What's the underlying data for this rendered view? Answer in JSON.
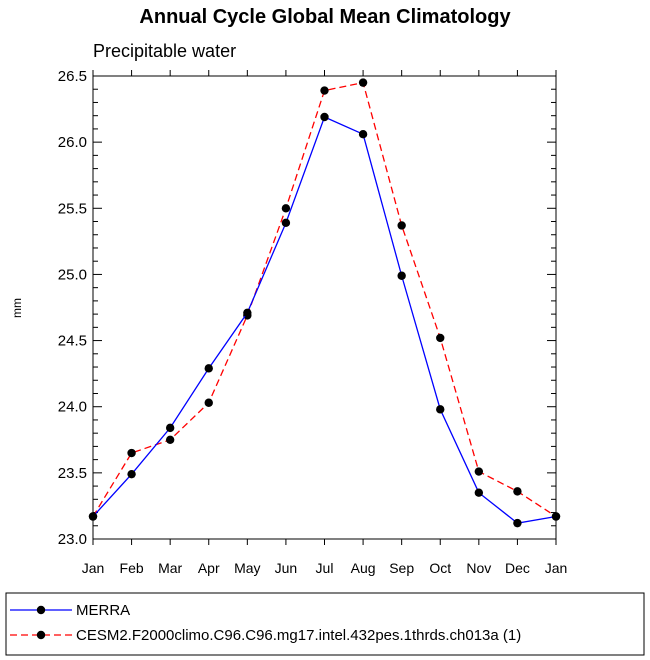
{
  "chart_data": {
    "type": "line",
    "title": "Annual Cycle Global Mean Climatology",
    "subtitle": "Precipitable water",
    "xlabel": "",
    "ylabel": "mm",
    "categories": [
      "Jan",
      "Feb",
      "Mar",
      "Apr",
      "May",
      "Jun",
      "Jul",
      "Aug",
      "Sep",
      "Oct",
      "Nov",
      "Dec",
      "Jan"
    ],
    "ylim": [
      23.0,
      26.5
    ],
    "yticks": [
      "23.0",
      "23.5",
      "24.0",
      "24.5",
      "25.0",
      "25.5",
      "26.0",
      "26.5"
    ],
    "grid": false,
    "legend_position": "bottom",
    "series": [
      {
        "name": "MERRA",
        "color": "#0000ff",
        "line_style": "solid",
        "marker": "filled-circle",
        "values": [
          23.17,
          23.49,
          23.84,
          24.29,
          24.71,
          25.39,
          26.19,
          26.06,
          24.99,
          23.98,
          23.35,
          23.12,
          23.17
        ]
      },
      {
        "name": "CESM2.F2000climo.C96.C96.mg17.intel.432pes.1thrds.ch013a (1)",
        "color": "#ff0000",
        "line_style": "dashed",
        "marker": "filled-circle",
        "values": [
          23.17,
          23.65,
          23.75,
          24.03,
          24.69,
          25.5,
          26.39,
          26.45,
          25.37,
          24.52,
          23.51,
          23.36,
          23.17
        ]
      }
    ]
  }
}
